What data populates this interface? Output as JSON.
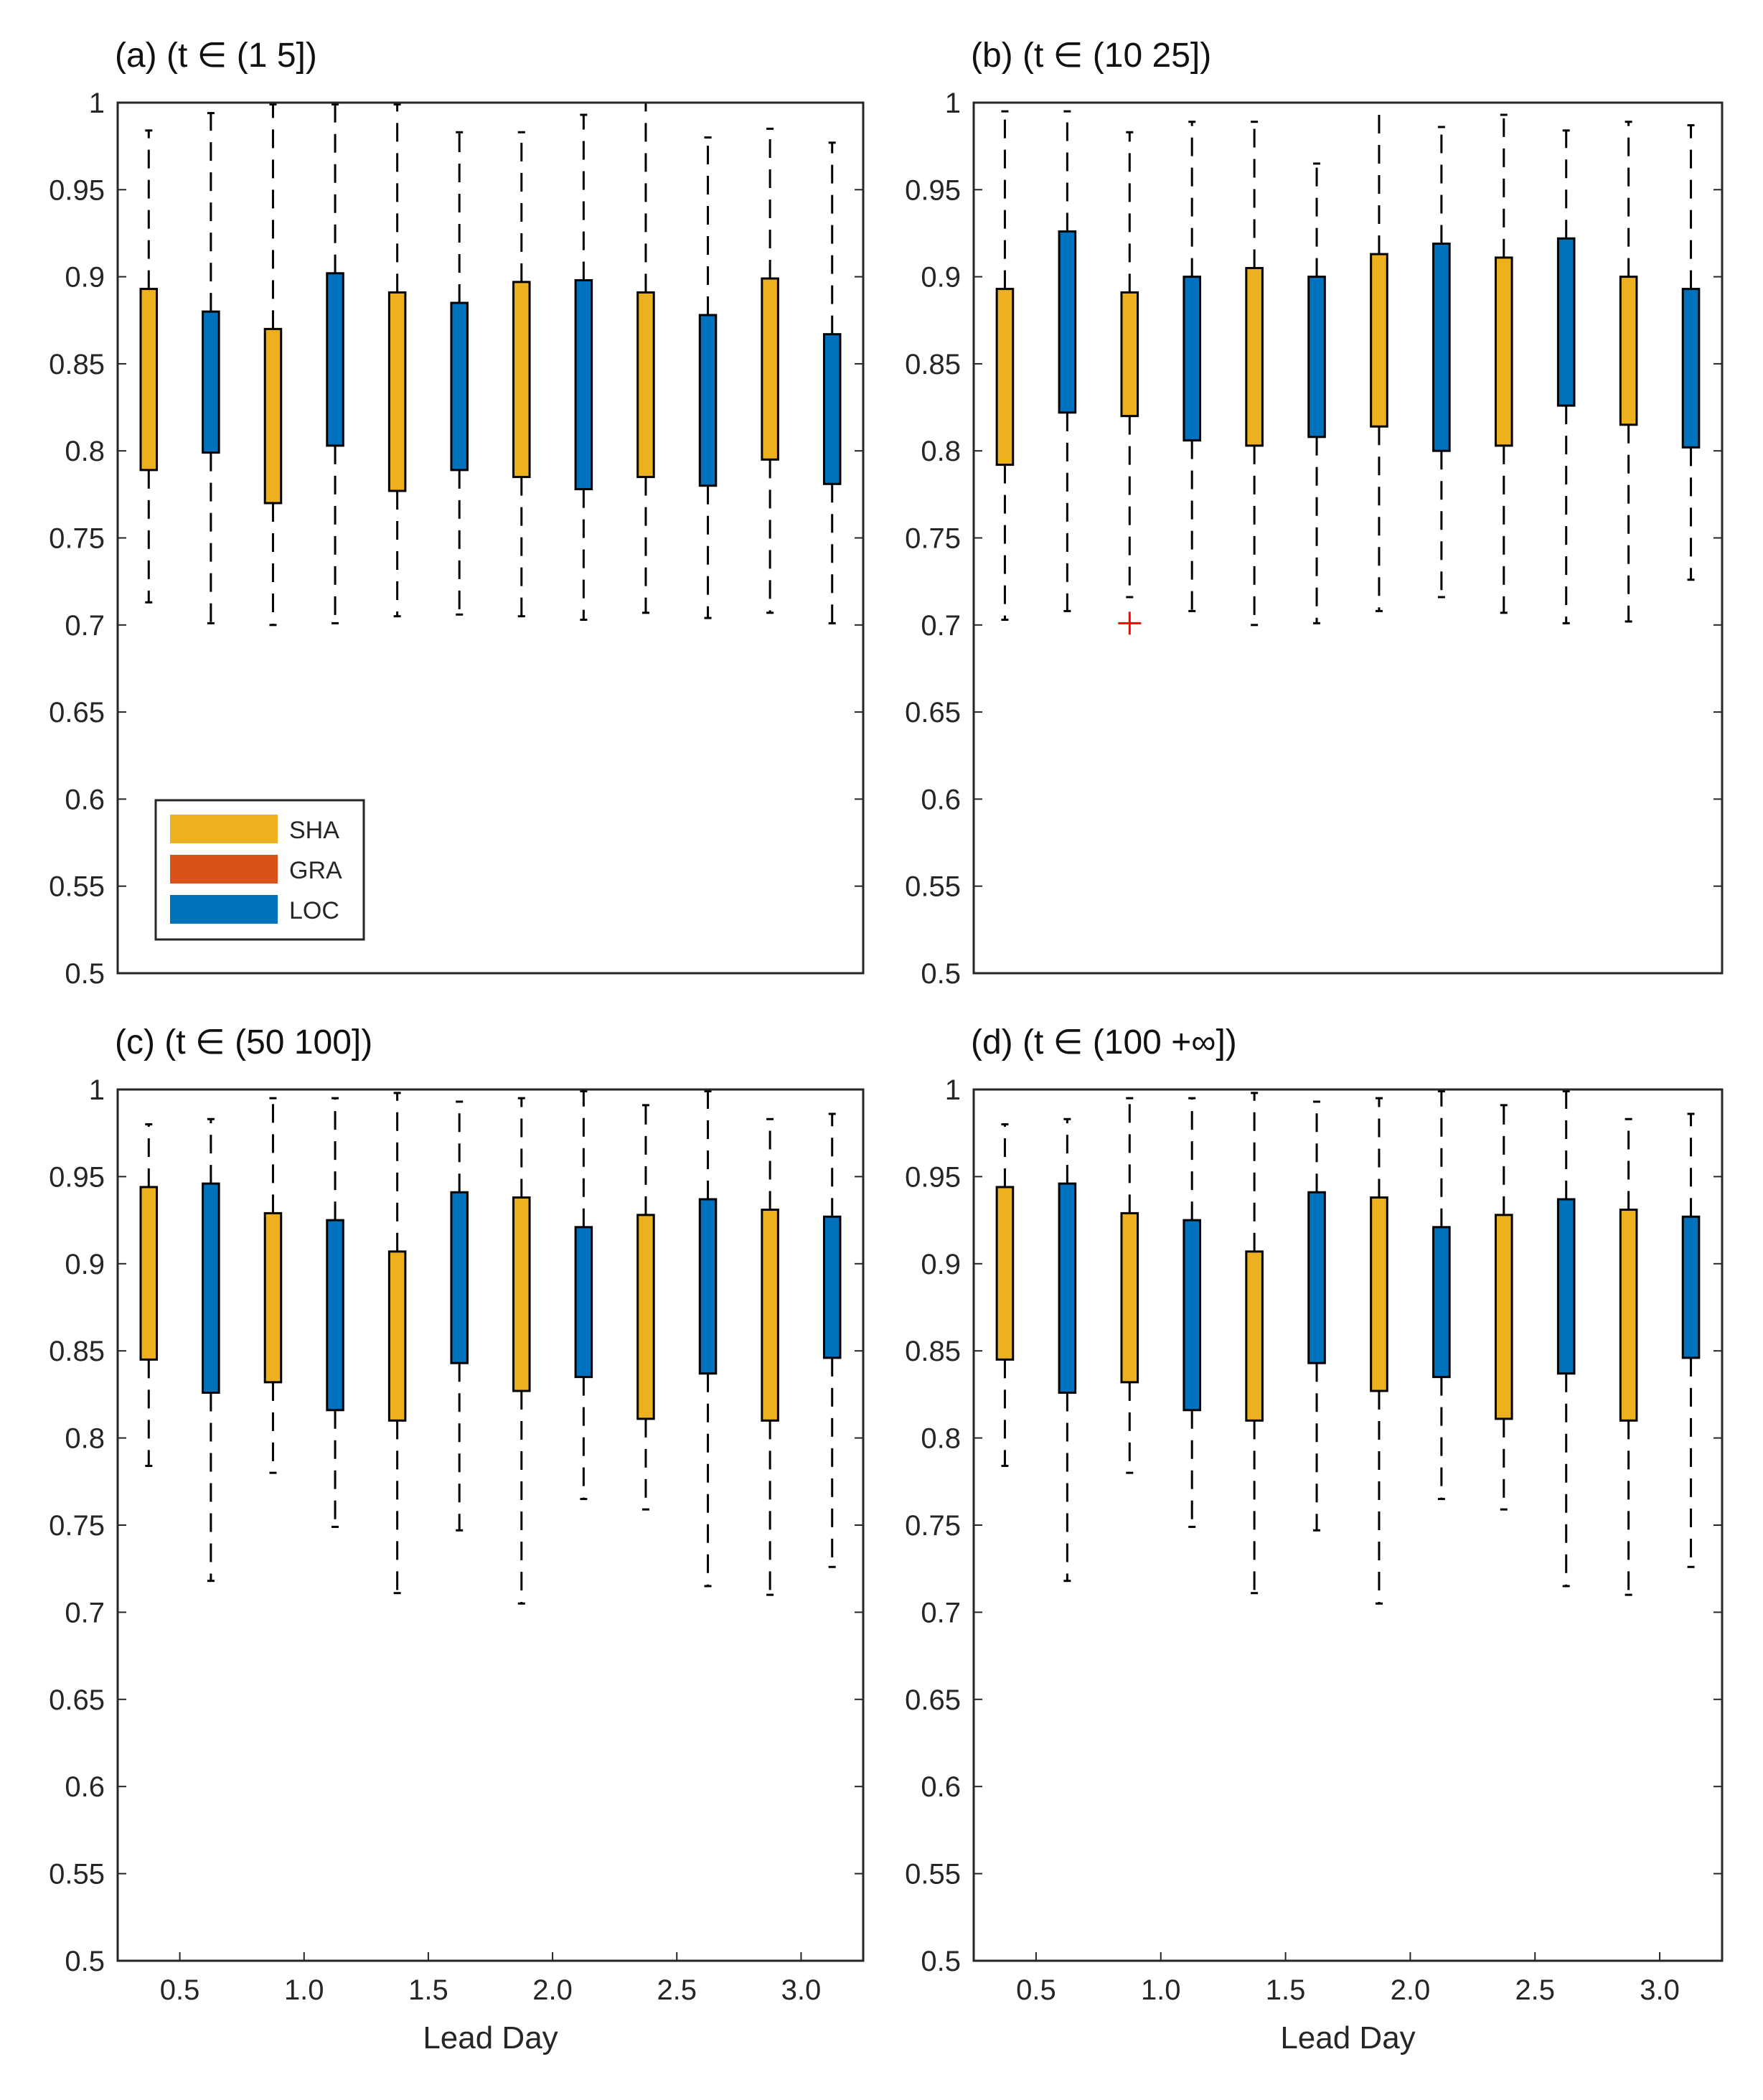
{
  "legend": [
    {
      "name": "SHA",
      "color": "#EDB120"
    },
    {
      "name": "GRA",
      "color": "#D95319"
    },
    {
      "name": "LOC",
      "color": "#0072BD"
    }
  ],
  "outlier_color": "#ff0000",
  "chart_data": [
    {
      "type": "boxplot",
      "title": "(a) (t ∈ (1 5])",
      "xlabel": "",
      "ylabel": "",
      "ylim": [
        0.5,
        1
      ],
      "yticks": [
        "0.5",
        "0.55",
        "0.6",
        "0.65",
        "0.7",
        "0.75",
        "0.8",
        "0.85",
        "0.9",
        "0.95",
        "1"
      ],
      "xticks": [],
      "x": [
        0.375,
        0.625,
        0.875,
        1.125,
        1.375,
        1.625,
        1.875,
        2.125,
        2.375,
        2.625,
        2.875,
        3.125
      ],
      "series_per_box": [
        "SHA",
        "LOC",
        "SHA",
        "LOC",
        "SHA",
        "LOC",
        "SHA",
        "LOC",
        "SHA",
        "LOC",
        "SHA",
        "LOC"
      ],
      "whisker_low": [
        0.713,
        0.701,
        0.7,
        0.701,
        0.705,
        0.706,
        0.705,
        0.703,
        0.707,
        0.704,
        0.707,
        0.701
      ],
      "q1": [
        0.789,
        0.799,
        0.77,
        0.803,
        0.777,
        0.789,
        0.785,
        0.778,
        0.785,
        0.78,
        0.795,
        0.781
      ],
      "q3": [
        0.893,
        0.88,
        0.87,
        0.902,
        0.891,
        0.885,
        0.897,
        0.898,
        0.891,
        0.878,
        0.899,
        0.867
      ],
      "whisker_high": [
        0.984,
        0.994,
        0.999,
        0.999,
        0.999,
        0.983,
        0.983,
        0.993,
        1.0,
        0.98,
        0.985,
        0.977
      ],
      "outliers": []
    },
    {
      "type": "boxplot",
      "title": "(b) (t ∈ (10 25])",
      "xlabel": "",
      "ylabel": "",
      "ylim": [
        0.5,
        1
      ],
      "yticks": [
        "0.5",
        "0.55",
        "0.6",
        "0.65",
        "0.7",
        "0.75",
        "0.8",
        "0.85",
        "0.9",
        "0.95",
        "1"
      ],
      "xticks": [],
      "x": [
        0.375,
        0.625,
        0.875,
        1.125,
        1.375,
        1.625,
        1.875,
        2.125,
        2.375,
        2.625,
        2.875,
        3.125
      ],
      "series_per_box": [
        "SHA",
        "LOC",
        "SHA",
        "LOC",
        "SHA",
        "LOC",
        "SHA",
        "LOC",
        "SHA",
        "LOC",
        "SHA",
        "LOC"
      ],
      "whisker_low": [
        0.703,
        0.708,
        0.716,
        0.708,
        0.7,
        0.701,
        0.708,
        0.716,
        0.707,
        0.701,
        0.702,
        0.726
      ],
      "q1": [
        0.792,
        0.822,
        0.82,
        0.806,
        0.803,
        0.808,
        0.814,
        0.8,
        0.803,
        0.826,
        0.815,
        0.802
      ],
      "q3": [
        0.893,
        0.926,
        0.891,
        0.9,
        0.905,
        0.9,
        0.913,
        0.919,
        0.911,
        0.922,
        0.9,
        0.893
      ],
      "whisker_high": [
        0.995,
        0.995,
        0.983,
        0.989,
        0.989,
        0.965,
        1.0,
        0.986,
        0.993,
        0.984,
        0.989,
        0.987
      ],
      "outliers": [
        {
          "x": 0.875,
          "y": 0.701
        }
      ]
    },
    {
      "type": "boxplot",
      "title": "(c) (t ∈ (50 100])",
      "xlabel": "Lead Day",
      "ylabel": "",
      "ylim": [
        0.5,
        1
      ],
      "yticks": [
        "0.5",
        "0.55",
        "0.6",
        "0.65",
        "0.7",
        "0.75",
        "0.8",
        "0.85",
        "0.9",
        "0.95",
        "1"
      ],
      "xticks": [
        "0.5",
        "1.0",
        "1.5",
        "2.0",
        "2.5",
        "3.0"
      ],
      "xtick_values": [
        0.5,
        1.0,
        1.5,
        2.0,
        2.5,
        3.0
      ],
      "x": [
        0.375,
        0.625,
        0.875,
        1.125,
        1.375,
        1.625,
        1.875,
        2.125,
        2.375,
        2.625,
        2.875,
        3.125
      ],
      "series_per_box": [
        "SHA",
        "LOC",
        "SHA",
        "LOC",
        "SHA",
        "LOC",
        "SHA",
        "LOC",
        "SHA",
        "LOC",
        "SHA",
        "LOC"
      ],
      "whisker_low": [
        0.784,
        0.718,
        0.78,
        0.749,
        0.711,
        0.747,
        0.705,
        0.765,
        0.759,
        0.715,
        0.71,
        0.726
      ],
      "q1": [
        0.845,
        0.826,
        0.832,
        0.816,
        0.81,
        0.843,
        0.827,
        0.835,
        0.811,
        0.837,
        0.81,
        0.846
      ],
      "q3": [
        0.944,
        0.946,
        0.929,
        0.925,
        0.907,
        0.941,
        0.938,
        0.921,
        0.928,
        0.937,
        0.931,
        0.927
      ],
      "whisker_high": [
        0.98,
        0.983,
        0.995,
        0.995,
        0.998,
        0.993,
        0.995,
        0.999,
        0.991,
        0.999,
        0.983,
        0.986
      ],
      "outliers": []
    },
    {
      "type": "boxplot",
      "title": "(d) (t ∈ (100 +∞])",
      "xlabel": "Lead Day",
      "ylabel": "",
      "ylim": [
        0.5,
        1
      ],
      "yticks": [
        "0.5",
        "0.55",
        "0.6",
        "0.65",
        "0.7",
        "0.75",
        "0.8",
        "0.85",
        "0.9",
        "0.95",
        "1"
      ],
      "xticks": [
        "0.5",
        "1.0",
        "1.5",
        "2.0",
        "2.5",
        "3.0"
      ],
      "xtick_values": [
        0.5,
        1.0,
        1.5,
        2.0,
        2.5,
        3.0
      ],
      "x": [
        0.375,
        0.625,
        0.875,
        1.125,
        1.375,
        1.625,
        1.875,
        2.125,
        2.375,
        2.625,
        2.875,
        3.125
      ],
      "series_per_box": [
        "SHA",
        "LOC",
        "SHA",
        "LOC",
        "SHA",
        "LOC",
        "SHA",
        "LOC",
        "SHA",
        "LOC",
        "SHA",
        "LOC"
      ],
      "whisker_low": [
        0.784,
        0.718,
        0.78,
        0.749,
        0.711,
        0.747,
        0.705,
        0.765,
        0.759,
        0.715,
        0.71,
        0.726
      ],
      "q1": [
        0.845,
        0.826,
        0.832,
        0.816,
        0.81,
        0.843,
        0.827,
        0.835,
        0.811,
        0.837,
        0.81,
        0.846
      ],
      "q3": [
        0.944,
        0.946,
        0.929,
        0.925,
        0.907,
        0.941,
        0.938,
        0.921,
        0.928,
        0.937,
        0.931,
        0.927
      ],
      "whisker_high": [
        0.98,
        0.983,
        0.995,
        0.995,
        0.998,
        0.993,
        0.995,
        0.999,
        0.991,
        0.999,
        0.983,
        0.986
      ],
      "outliers": []
    }
  ]
}
